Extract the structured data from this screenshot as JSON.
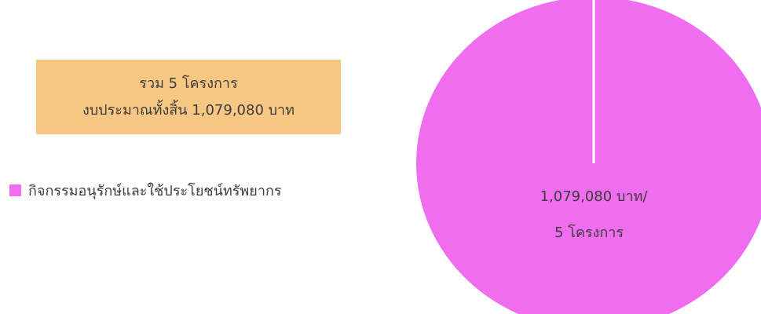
{
  "summary": {
    "line1": "รวม 5 โครงการ",
    "line2": "งบประมาณทั้งสิ้น  1,079,080 บาท",
    "background": "#f8c783"
  },
  "chart_data": {
    "type": "pie",
    "slices": [
      {
        "label": "กิจกรรมอนุรักษ์และใช้ประโยชน์ทรัพยากร",
        "value": 1079080,
        "share": 1.0,
        "color": "#f06df0",
        "data_label": [
          "1,079,080 บาท/",
          "5 โครงการ"
        ]
      }
    ],
    "legend": "left"
  }
}
